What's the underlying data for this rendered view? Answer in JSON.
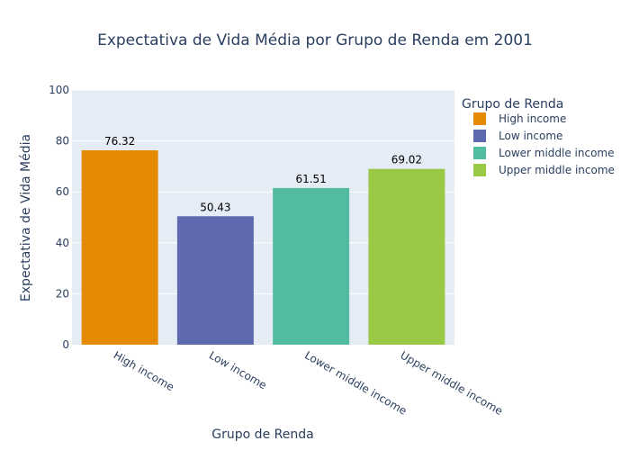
{
  "chart_data": {
    "type": "bar",
    "title": "Expectativa de Vida Média por Grupo de Renda em 2001",
    "xlabel": "Grupo de Renda",
    "ylabel": "Expectativa de Vida Média",
    "ylim": [
      0,
      100
    ],
    "yticks": [
      0,
      20,
      40,
      60,
      80,
      100
    ],
    "grid": true,
    "legend_title": "Grupo de Renda",
    "legend_position": "right",
    "categories": [
      "High income",
      "Low income",
      "Lower middle income",
      "Upper middle income"
    ],
    "values": [
      76.32,
      50.43,
      61.51,
      69.02
    ],
    "value_labels": [
      "76.32",
      "50.43",
      "61.51",
      "69.02"
    ],
    "colors": [
      "#E68A06",
      "#5E69B0",
      "#52BCA3",
      "#99C945"
    ],
    "plot_background": "#E5ECF6",
    "gridline_color": "#FFFFFF",
    "text_color": "#2A3F5F"
  }
}
